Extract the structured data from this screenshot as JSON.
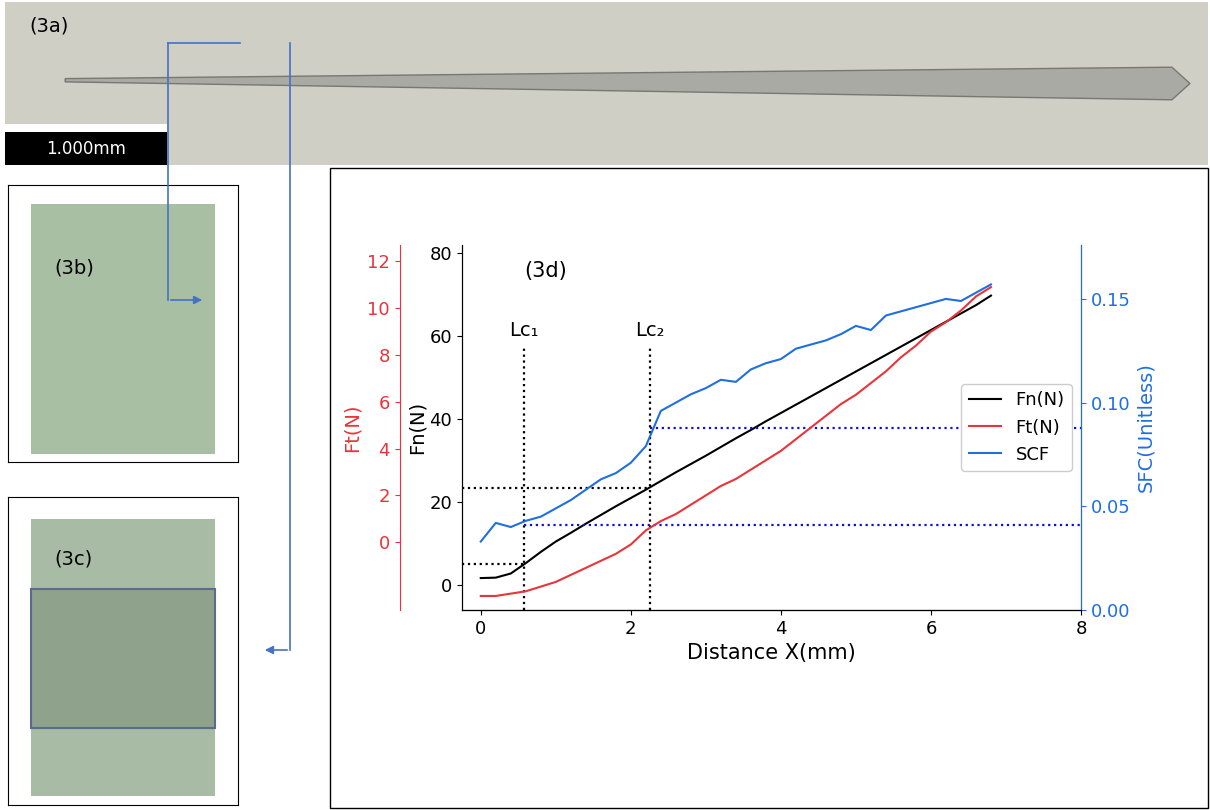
{
  "panels": {
    "3a": {
      "label": "(3a)",
      "scale_bar": "1.000mm"
    },
    "3b": {
      "label": "(3b)"
    },
    "3c": {
      "label": "(3c)"
    }
  },
  "chart_data": {
    "type": "line",
    "panel_label": "(3d)",
    "xlabel": "Distance X(mm)",
    "ylabel": "Fn(N)",
    "y2label": "SFC(Unitless)",
    "y3label": "Ft(N)",
    "xlim": [
      -0.25,
      8
    ],
    "xticks": [
      0,
      2,
      4,
      6,
      8
    ],
    "ylim": [
      -6,
      82
    ],
    "yticks": [
      0,
      20,
      40,
      60,
      80
    ],
    "y2lim": [
      0,
      0.176
    ],
    "y2ticks": [
      {
        "value": 0.0,
        "label": "0.00"
      },
      {
        "value": 0.05,
        "label": "0.05"
      },
      {
        "value": 0.1,
        "label": "0.10"
      },
      {
        "value": 0.15,
        "label": "0.15"
      }
    ],
    "y3lim": [
      -2.9,
      12.7
    ],
    "y3ticks": [
      0,
      2,
      4,
      6,
      8,
      10,
      12
    ],
    "legend": "center right",
    "x": [
      0.0,
      0.2,
      0.4,
      0.6,
      0.8,
      1.0,
      1.2,
      1.4,
      1.6,
      1.8,
      2.0,
      2.2,
      2.4,
      2.6,
      2.8,
      3.0,
      3.2,
      3.4,
      3.6,
      3.8,
      4.0,
      4.2,
      4.4,
      4.6,
      4.8,
      5.0,
      5.2,
      5.4,
      5.6,
      5.8,
      6.0,
      6.2,
      6.4,
      6.6,
      6.8
    ],
    "series": [
      {
        "name": "Fn(N)",
        "color": "#000000",
        "axis": "y",
        "values": [
          1.7,
          1.8,
          2.8,
          5.3,
          8.0,
          10.5,
          12.6,
          14.8,
          16.9,
          19.0,
          21.0,
          23.0,
          25.1,
          27.2,
          29.2,
          31.2,
          33.3,
          35.4,
          37.4,
          39.5,
          41.5,
          43.5,
          45.5,
          47.5,
          49.5,
          51.5,
          53.5,
          55.5,
          57.5,
          59.5,
          61.5,
          63.5,
          65.5,
          67.5,
          69.8
        ]
      },
      {
        "name": "Ft(N)",
        "color": "#e8343a",
        "axis": "y3",
        "values": [
          -2.3,
          -2.3,
          -2.2,
          -2.1,
          -1.9,
          -1.7,
          -1.4,
          -1.1,
          -0.8,
          -0.5,
          -0.1,
          0.5,
          0.9,
          1.2,
          1.6,
          2.0,
          2.4,
          2.7,
          3.1,
          3.5,
          3.9,
          4.4,
          4.9,
          5.4,
          5.9,
          6.3,
          6.8,
          7.3,
          7.9,
          8.4,
          9.0,
          9.4,
          9.9,
          10.5,
          10.9
        ]
      },
      {
        "name": "SCF",
        "color": "#1f6fe0",
        "axis": "y2",
        "values": [
          0.033,
          0.042,
          0.04,
          0.043,
          0.045,
          0.049,
          0.053,
          0.058,
          0.063,
          0.066,
          0.071,
          0.079,
          0.096,
          0.1,
          0.104,
          0.107,
          0.111,
          0.11,
          0.116,
          0.119,
          0.121,
          0.126,
          0.128,
          0.13,
          0.133,
          0.137,
          0.135,
          0.142,
          0.144,
          0.146,
          0.148,
          0.15,
          0.149,
          0.153,
          0.157
        ]
      }
    ],
    "critical_loads": [
      {
        "label": "Lc₁",
        "x": 0.57,
        "y": 5,
        "y2": 0.041
      },
      {
        "label": "Lc₂",
        "x": 2.25,
        "y": 23.5,
        "y2": 0.088
      }
    ]
  }
}
